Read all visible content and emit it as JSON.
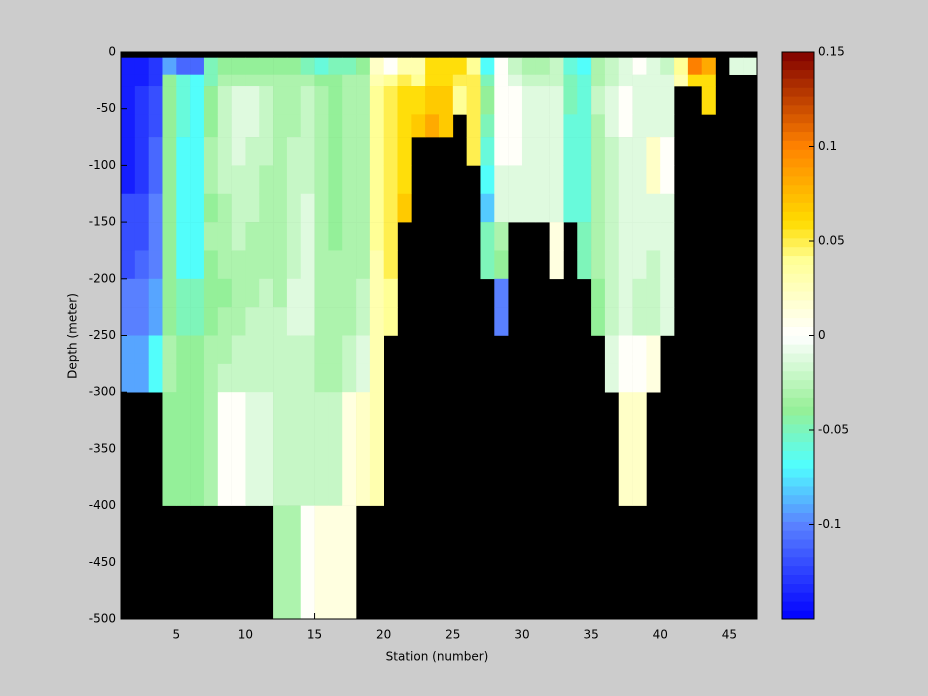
{
  "chart_data": {
    "type": "heatmap",
    "xlabel": "Station (number)",
    "ylabel": "Depth (meter)",
    "x": [
      1,
      2,
      3,
      4,
      5,
      6,
      7,
      8,
      9,
      10,
      11,
      12,
      13,
      14,
      15,
      16,
      17,
      18,
      19,
      20,
      21,
      22,
      23,
      24,
      25,
      26,
      27,
      28,
      29,
      30,
      31,
      32,
      33,
      34,
      35,
      36,
      37,
      38,
      39,
      40,
      41,
      42,
      43,
      44,
      45,
      46
    ],
    "depth_edges": [
      -5,
      -20,
      -30,
      -55,
      -75,
      -100,
      -125,
      -150,
      -175,
      -200,
      -225,
      -250,
      -275,
      -300,
      -400,
      -500
    ],
    "values": [
      [
        -0.14,
        -0.14,
        -0.14,
        -0.14,
        -0.14,
        -0.14,
        -0.12,
        -0.12,
        -0.12,
        -0.1,
        -0.1,
        -0.09,
        -0.09,
        null,
        null
      ],
      [
        -0.14,
        -0.14,
        -0.13,
        -0.13,
        -0.13,
        -0.13,
        -0.12,
        -0.12,
        -0.11,
        -0.1,
        -0.1,
        -0.09,
        -0.09,
        null,
        null
      ],
      [
        -0.13,
        -0.13,
        -0.12,
        -0.12,
        -0.11,
        -0.11,
        -0.1,
        -0.1,
        -0.1,
        -0.09,
        -0.09,
        -0.07,
        -0.07,
        null,
        null
      ],
      [
        -0.09,
        -0.04,
        -0.04,
        -0.04,
        -0.04,
        -0.04,
        -0.04,
        -0.04,
        -0.04,
        -0.04,
        -0.04,
        -0.03,
        -0.03,
        -0.04,
        null
      ],
      [
        -0.11,
        -0.06,
        -0.06,
        -0.06,
        -0.07,
        -0.07,
        -0.07,
        -0.07,
        -0.07,
        -0.05,
        -0.05,
        -0.04,
        -0.04,
        -0.04,
        null
      ],
      [
        -0.11,
        -0.07,
        -0.07,
        -0.07,
        -0.07,
        -0.07,
        -0.07,
        -0.07,
        -0.07,
        -0.05,
        -0.05,
        -0.04,
        -0.04,
        -0.04,
        null
      ],
      [
        -0.05,
        -0.05,
        -0.04,
        -0.04,
        -0.03,
        -0.03,
        -0.04,
        -0.03,
        -0.04,
        -0.04,
        -0.04,
        -0.03,
        -0.03,
        -0.03,
        null
      ],
      [
        -0.04,
        -0.03,
        -0.02,
        -0.02,
        -0.02,
        -0.02,
        -0.03,
        -0.03,
        -0.03,
        -0.04,
        -0.03,
        -0.03,
        -0.02,
        0.0,
        null
      ],
      [
        -0.04,
        -0.03,
        -0.01,
        -0.01,
        -0.01,
        -0.02,
        -0.02,
        -0.02,
        -0.03,
        -0.03,
        -0.03,
        -0.02,
        -0.02,
        0.0,
        null
      ],
      [
        -0.04,
        -0.03,
        -0.01,
        -0.01,
        -0.02,
        -0.02,
        -0.02,
        -0.03,
        -0.03,
        -0.03,
        -0.02,
        -0.02,
        -0.02,
        -0.01,
        null
      ],
      [
        -0.04,
        -0.03,
        -0.02,
        -0.02,
        -0.02,
        -0.03,
        -0.03,
        -0.03,
        -0.03,
        -0.02,
        -0.02,
        -0.02,
        -0.02,
        -0.01,
        null
      ],
      [
        -0.04,
        -0.03,
        -0.03,
        -0.03,
        -0.03,
        -0.03,
        -0.03,
        -0.03,
        -0.03,
        -0.03,
        -0.02,
        -0.02,
        -0.02,
        -0.02,
        -0.03
      ],
      [
        -0.04,
        -0.03,
        -0.03,
        -0.03,
        -0.02,
        -0.02,
        -0.02,
        -0.02,
        -0.02,
        -0.01,
        -0.01,
        -0.02,
        -0.02,
        -0.02,
        -0.03
      ],
      [
        -0.05,
        -0.03,
        -0.02,
        -0.02,
        -0.02,
        -0.02,
        -0.01,
        -0.01,
        -0.01,
        -0.01,
        -0.01,
        -0.02,
        -0.02,
        -0.02,
        0.0
      ],
      [
        -0.06,
        -0.04,
        -0.03,
        -0.03,
        -0.03,
        -0.03,
        -0.03,
        -0.03,
        -0.03,
        -0.03,
        -0.03,
        -0.03,
        -0.03,
        -0.02,
        0.01
      ],
      [
        -0.05,
        -0.04,
        -0.04,
        -0.04,
        -0.04,
        -0.04,
        -0.04,
        -0.04,
        -0.03,
        -0.03,
        -0.03,
        -0.03,
        -0.03,
        -0.02,
        0.01
      ],
      [
        -0.05,
        -0.03,
        -0.03,
        -0.03,
        -0.03,
        -0.03,
        -0.03,
        -0.03,
        -0.03,
        -0.03,
        -0.03,
        -0.02,
        -0.02,
        0.01,
        0.01
      ],
      [
        -0.04,
        -0.03,
        -0.03,
        -0.03,
        -0.03,
        -0.03,
        -0.03,
        -0.03,
        -0.03,
        -0.02,
        -0.02,
        -0.01,
        -0.01,
        0.02,
        null
      ],
      [
        0.02,
        0.03,
        0.04,
        0.04,
        0.04,
        0.04,
        0.04,
        0.04,
        0.03,
        0.03,
        0.03,
        0.03,
        0.03,
        0.03,
        null
      ],
      [
        0.0,
        0.04,
        0.05,
        0.05,
        0.05,
        0.05,
        0.05,
        0.05,
        0.05,
        0.04,
        0.04,
        null,
        null,
        null,
        null
      ],
      [
        0.03,
        0.05,
        0.06,
        0.06,
        0.06,
        0.06,
        0.07,
        null,
        null,
        null,
        null,
        null,
        null,
        null,
        null
      ],
      [
        0.03,
        0.04,
        0.06,
        0.07,
        null,
        null,
        null,
        null,
        null,
        null,
        null,
        null,
        null,
        null,
        null
      ],
      [
        0.06,
        0.06,
        0.07,
        0.08,
        null,
        null,
        null,
        null,
        null,
        null,
        null,
        null,
        null,
        null,
        null
      ],
      [
        0.06,
        0.06,
        0.07,
        0.07,
        null,
        null,
        null,
        null,
        null,
        null,
        null,
        null,
        null,
        null,
        null
      ],
      [
        0.06,
        0.05,
        0.04,
        null,
        null,
        null,
        null,
        null,
        null,
        null,
        null,
        null,
        null,
        null,
        null
      ],
      [
        0.04,
        0.05,
        0.05,
        0.05,
        0.05,
        null,
        null,
        null,
        null,
        null,
        null,
        null,
        null,
        null,
        null
      ],
      [
        -0.07,
        -0.05,
        -0.04,
        -0.05,
        -0.06,
        -0.07,
        -0.08,
        -0.05,
        -0.05,
        null,
        null,
        null,
        null,
        null,
        null
      ],
      [
        0.0,
        0.0,
        0.0,
        0.0,
        0.0,
        -0.01,
        -0.01,
        -0.03,
        -0.04,
        -0.1,
        -0.1,
        null,
        null,
        null,
        null
      ],
      [
        -0.02,
        -0.01,
        0.0,
        0.0,
        0.0,
        -0.01,
        -0.01,
        null,
        null,
        null,
        null,
        null,
        null,
        null,
        null
      ],
      [
        -0.03,
        -0.02,
        -0.01,
        -0.01,
        -0.01,
        -0.01,
        -0.01,
        null,
        null,
        null,
        null,
        null,
        null,
        null,
        null
      ],
      [
        -0.03,
        -0.02,
        -0.01,
        -0.01,
        -0.01,
        -0.01,
        -0.01,
        null,
        null,
        null,
        null,
        null,
        null,
        null,
        null
      ],
      [
        -0.02,
        -0.02,
        -0.01,
        -0.01,
        -0.01,
        -0.01,
        -0.01,
        0.01,
        0.01,
        null,
        null,
        null,
        null,
        null,
        null
      ],
      [
        -0.06,
        -0.05,
        -0.05,
        -0.06,
        -0.06,
        -0.06,
        -0.06,
        null,
        null,
        null,
        null,
        null,
        null,
        null,
        null
      ],
      [
        -0.07,
        -0.06,
        -0.06,
        -0.06,
        -0.06,
        -0.06,
        -0.06,
        -0.05,
        -0.05,
        null,
        null,
        null,
        null,
        null,
        null
      ],
      [
        -0.03,
        -0.03,
        -0.02,
        -0.03,
        -0.03,
        -0.03,
        -0.03,
        -0.03,
        -0.03,
        -0.04,
        -0.04,
        null,
        null,
        null,
        null
      ],
      [
        -0.02,
        -0.02,
        -0.01,
        -0.01,
        -0.02,
        -0.02,
        -0.02,
        -0.02,
        -0.02,
        -0.02,
        -0.02,
        -0.01,
        -0.01,
        null,
        null
      ],
      [
        -0.01,
        -0.01,
        0.0,
        0.0,
        -0.01,
        -0.01,
        -0.01,
        -0.01,
        -0.01,
        -0.01,
        -0.01,
        0.0,
        0.0,
        0.02,
        null
      ],
      [
        0.0,
        -0.01,
        -0.01,
        -0.01,
        -0.01,
        -0.01,
        -0.01,
        -0.01,
        -0.01,
        -0.02,
        -0.02,
        0.0,
        0.0,
        0.02,
        null
      ],
      [
        -0.01,
        -0.01,
        -0.01,
        -0.01,
        0.02,
        0.02,
        -0.01,
        -0.01,
        -0.02,
        -0.02,
        -0.02,
        0.01,
        0.01,
        null,
        null
      ],
      [
        -0.02,
        -0.01,
        -0.01,
        -0.01,
        0.0,
        0.0,
        -0.01,
        -0.01,
        -0.01,
        -0.01,
        -0.01,
        null,
        null,
        null,
        null
      ],
      [
        0.04,
        0.03,
        null,
        null,
        null,
        null,
        null,
        null,
        null,
        null,
        null,
        null,
        null,
        null,
        null
      ],
      [
        0.1,
        0.06,
        null,
        null,
        null,
        null,
        null,
        null,
        null,
        null,
        null,
        null,
        null,
        null,
        null
      ],
      [
        0.08,
        0.06,
        0.06,
        null,
        null,
        null,
        null,
        null,
        null,
        null,
        null,
        null,
        null,
        null,
        null
      ],
      [
        null,
        null,
        null,
        null,
        null,
        null,
        null,
        null,
        null,
        null,
        null,
        null,
        null,
        null,
        null
      ],
      [
        -0.01,
        null,
        null,
        null,
        null,
        null,
        null,
        null,
        null,
        null,
        null,
        null,
        null,
        null,
        null
      ],
      [
        -0.01,
        null,
        null,
        null,
        null,
        null,
        null,
        null,
        null,
        null,
        null,
        null,
        null,
        null,
        null
      ]
    ],
    "xlim": [
      1,
      47
    ],
    "ylim": [
      -500,
      0
    ],
    "xticks": [
      5,
      10,
      15,
      20,
      25,
      30,
      35,
      40,
      45
    ],
    "yticks": [
      0,
      -50,
      -100,
      -150,
      -200,
      -250,
      -300,
      -350,
      -400,
      -450,
      -500
    ],
    "clim": [
      -0.15,
      0.15
    ],
    "cticks": [
      -0.1,
      -0.05,
      0,
      0.05,
      0.1,
      0.15
    ],
    "missing_color": "#000000"
  }
}
